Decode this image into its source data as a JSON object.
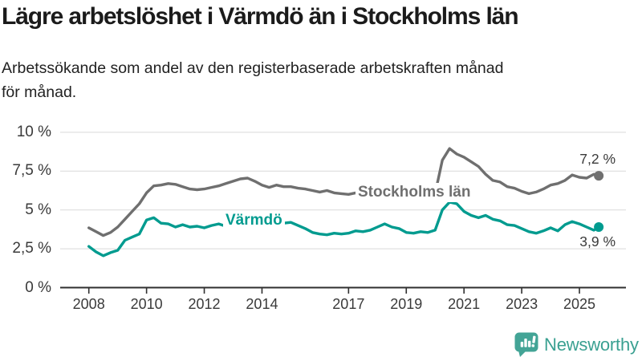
{
  "header": {
    "title": "Lägre arbetslöshet i Värmdö än i Stockholms län",
    "subtitle_line1": "Arbetssökande som andel av den registerbaserade arbetskraften månad",
    "subtitle_line2": "för månad."
  },
  "chart_data": {
    "type": "line",
    "title": "Lägre arbetslöshet i Värmdö än i Stockholms län",
    "subtitle": "Arbetssökande som andel av den registerbaserade arbetskraften månad för månad.",
    "unit": "%",
    "ylim": [
      0,
      10
    ],
    "grid": true,
    "x": [
      2008,
      2008.25,
      2008.5,
      2008.75,
      2009,
      2009.25,
      2009.5,
      2009.75,
      2010,
      2010.25,
      2010.5,
      2010.75,
      2011,
      2011.25,
      2011.5,
      2011.75,
      2012,
      2012.25,
      2012.5,
      2012.75,
      2013,
      2013.25,
      2013.5,
      2013.75,
      2014,
      2014.25,
      2014.5,
      2014.75,
      2015,
      2015.25,
      2015.5,
      2015.75,
      2016,
      2016.25,
      2016.5,
      2016.75,
      2017,
      2017.25,
      2017.5,
      2017.75,
      2018,
      2018.25,
      2018.5,
      2018.75,
      2019,
      2019.25,
      2019.5,
      2019.75,
      2020,
      2020.25,
      2020.5,
      2020.75,
      2021,
      2021.25,
      2021.5,
      2021.75,
      2022,
      2022.25,
      2022.5,
      2022.75,
      2023,
      2023.25,
      2023.5,
      2023.75,
      2024,
      2024.25,
      2024.5,
      2024.75,
      2025,
      2025.25,
      2025.5,
      2025.67
    ],
    "series": [
      {
        "name": "Stockholms län",
        "color": "#6f6f6f",
        "end_label": "7,2 %",
        "end_value": 7.2,
        "values": [
          3.85,
          3.6,
          3.35,
          3.55,
          3.9,
          4.4,
          4.9,
          5.4,
          6.1,
          6.55,
          6.6,
          6.7,
          6.65,
          6.5,
          6.35,
          6.3,
          6.35,
          6.45,
          6.55,
          6.7,
          6.85,
          7.0,
          7.05,
          6.85,
          6.6,
          6.45,
          6.6,
          6.5,
          6.5,
          6.4,
          6.35,
          6.25,
          6.15,
          6.25,
          6.1,
          6.05,
          6.0,
          6.1,
          6.15,
          6.2,
          6.2,
          6.15,
          6.1,
          6.05,
          6.0,
          5.95,
          5.9,
          5.95,
          6.05,
          8.2,
          8.95,
          8.6,
          8.4,
          8.1,
          7.8,
          7.3,
          6.9,
          6.8,
          6.5,
          6.4,
          6.2,
          6.05,
          6.15,
          6.35,
          6.6,
          6.7,
          6.9,
          7.25,
          7.1,
          7.05,
          7.3,
          7.2
        ]
      },
      {
        "name": "Värmdö",
        "color": "#009b8f",
        "end_label": "3,9 %",
        "end_value": 3.9,
        "values": [
          2.65,
          2.3,
          2.05,
          2.25,
          2.4,
          3.05,
          3.25,
          3.45,
          4.35,
          4.5,
          4.15,
          4.1,
          3.9,
          4.05,
          3.9,
          3.95,
          3.85,
          4.0,
          4.1,
          3.95,
          4.0,
          4.1,
          4.05,
          4.15,
          4.1,
          4.2,
          4.1,
          4.15,
          4.2,
          4.0,
          3.8,
          3.55,
          3.45,
          3.4,
          3.5,
          3.45,
          3.5,
          3.65,
          3.6,
          3.7,
          3.9,
          4.1,
          3.9,
          3.8,
          3.55,
          3.5,
          3.6,
          3.55,
          3.7,
          5.0,
          5.5,
          5.4,
          4.9,
          4.65,
          4.5,
          4.65,
          4.4,
          4.3,
          4.05,
          4.0,
          3.8,
          3.6,
          3.5,
          3.65,
          3.85,
          3.65,
          4.05,
          4.25,
          4.1,
          3.9,
          3.7,
          3.9
        ]
      }
    ],
    "y_ticks": [
      {
        "value": 10,
        "label": "10 %"
      },
      {
        "value": 7.5,
        "label": "7,5 %"
      },
      {
        "value": 5,
        "label": "5 %"
      },
      {
        "value": 2.5,
        "label": "2,5 %"
      },
      {
        "value": 0,
        "label": "0 %"
      }
    ],
    "x_ticks": [
      {
        "value": 2008,
        "label": "2008"
      },
      {
        "value": 2010,
        "label": "2010"
      },
      {
        "value": 2012,
        "label": "2012"
      },
      {
        "value": 2014,
        "label": "2014"
      },
      {
        "value": 2017,
        "label": "2017"
      },
      {
        "value": 2019,
        "label": "2019"
      },
      {
        "value": 2021,
        "label": "2021"
      },
      {
        "value": 2023,
        "label": "2023"
      },
      {
        "value": 2025,
        "label": "2025"
      }
    ],
    "legend_position": "inline-labels",
    "colors": {
      "grid": "#d9d9d9",
      "axis": "#2f2f2f",
      "tick_text": "#3a3a3a"
    }
  },
  "branding": {
    "logo_text": "Newsworthy",
    "logo_icon": "bar-chart-speech-bubble-icon",
    "logo_color": "#3aa091"
  }
}
